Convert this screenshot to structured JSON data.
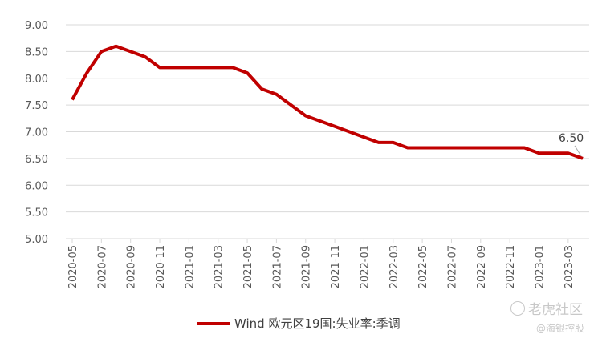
{
  "chart_data": {
    "type": "line",
    "x": [
      "2020-05",
      "2020-06",
      "2020-07",
      "2020-08",
      "2020-09",
      "2020-10",
      "2020-11",
      "2020-12",
      "2021-01",
      "2021-02",
      "2021-03",
      "2021-04",
      "2021-05",
      "2021-06",
      "2021-07",
      "2021-08",
      "2021-09",
      "2021-10",
      "2021-11",
      "2021-12",
      "2022-01",
      "2022-02",
      "2022-03",
      "2022-04",
      "2022-05",
      "2022-06",
      "2022-07",
      "2022-08",
      "2022-09",
      "2022-10",
      "2022-11",
      "2022-12",
      "2023-01",
      "2023-02",
      "2023-03",
      "2023-04"
    ],
    "x_tick_labels": [
      "2020-05",
      "2020-07",
      "2020-09",
      "2020-11",
      "2021-01",
      "2021-03",
      "2021-05",
      "2021-07",
      "2021-09",
      "2021-11",
      "2022-01",
      "2022-03",
      "2022-05",
      "2022-07",
      "2022-09",
      "2022-11",
      "2023-01",
      "2023-03"
    ],
    "y_tick_labels": [
      "9.00",
      "8.50",
      "8.00",
      "7.50",
      "7.00",
      "6.50",
      "6.00",
      "5.50",
      "5.00"
    ],
    "series": [
      {
        "name": "Wind 欧元区19国:失业率:季调",
        "color": "#c00000",
        "values": [
          7.6,
          8.1,
          8.5,
          8.6,
          8.5,
          8.4,
          8.2,
          8.2,
          8.2,
          8.2,
          8.2,
          8.2,
          8.1,
          7.8,
          7.7,
          7.5,
          7.3,
          7.2,
          7.1,
          7.0,
          6.9,
          6.8,
          6.8,
          6.7,
          6.7,
          6.7,
          6.7,
          6.7,
          6.7,
          6.7,
          6.7,
          6.7,
          6.6,
          6.6,
          6.6,
          6.5
        ]
      }
    ],
    "ylim": [
      5.0,
      9.0
    ],
    "grid": true,
    "legend_position": "bottom",
    "annotation": {
      "label": "6.50"
    },
    "title": "",
    "xlabel": "",
    "ylabel": ""
  },
  "watermark": {
    "main": "老虎社区",
    "sub": "@海银控股"
  }
}
